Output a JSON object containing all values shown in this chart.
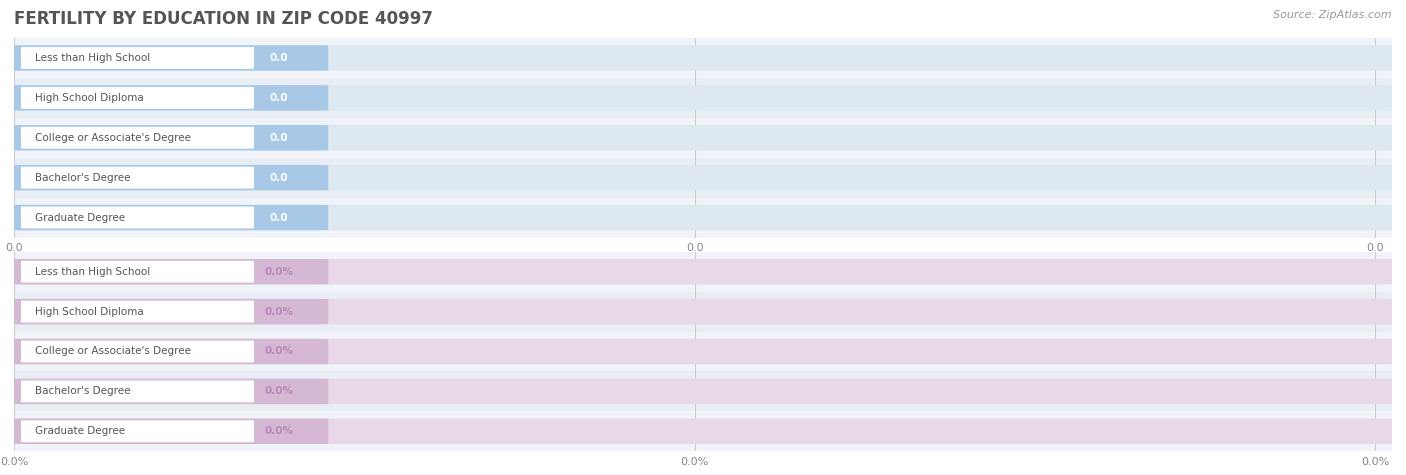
{
  "title": "FERTILITY BY EDUCATION IN ZIP CODE 40997",
  "source_text": "Source: ZipAtlas.com",
  "categories": [
    "Less than High School",
    "High School Diploma",
    "College or Associate's Degree",
    "Bachelor's Degree",
    "Graduate Degree"
  ],
  "values_top": [
    0.0,
    0.0,
    0.0,
    0.0,
    0.0
  ],
  "values_bottom": [
    0.0,
    0.0,
    0.0,
    0.0,
    0.0
  ],
  "bar_color_top": "#a8c8e8",
  "bar_color_bottom": "#d4b8d4",
  "row_bg_even": "#f0f4f8",
  "row_bg_odd": "#e8eef4",
  "tick_labels_top": [
    "0.0",
    "0.0",
    "0.0"
  ],
  "tick_labels_bottom": [
    "0.0%",
    "0.0%",
    "0.0%"
  ],
  "title_color": "#555555",
  "source_color": "#999999",
  "value_color_top": "#ffffff",
  "value_color_bottom": "#bb88bb",
  "title_fontsize": 12,
  "bar_height": 0.62,
  "background_color": "#ffffff",
  "label_text_color": "#555555",
  "grid_color": "#cccccc",
  "bar_bg_color": "#dde8f0",
  "bar_bg_color_bottom": "#e8d8e8"
}
